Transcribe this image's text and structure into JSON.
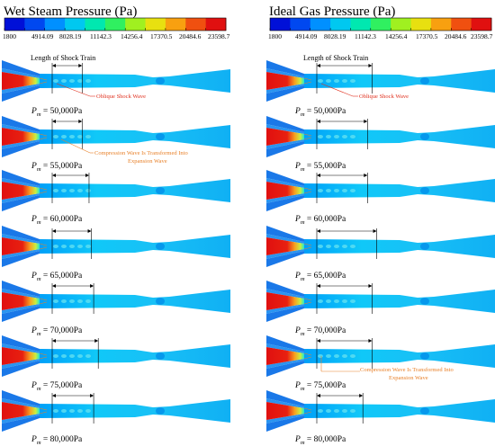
{
  "panels": [
    {
      "title": "Wet Steam Pressure (Pa)",
      "conditions": [
        "= 50,000Pa",
        "= 55,000Pa",
        "= 60,000Pa",
        "= 65,000Pa",
        "= 70,000Pa",
        "= 75,000Pa",
        "= 80,000Pa"
      ],
      "shock_train_fraction": [
        0.13,
        0.13,
        0.16,
        0.17,
        0.18,
        0.2,
        0.18
      ]
    },
    {
      "title": "Ideal Gas Pressure (Pa)",
      "conditions": [
        "= 50,000Pa",
        "= 55,000Pa",
        "= 60,000Pa",
        "= 65,000Pa",
        "= 70,000Pa",
        "= 75,000Pa",
        "= 80,000Pa"
      ],
      "shock_train_fraction": [
        0.24,
        0.22,
        0.22,
        0.26,
        0.24,
        0.24,
        0.2
      ]
    }
  ],
  "colorbar": {
    "ticks": [
      "1800",
      "4914.09",
      "8028.19",
      "11142.3",
      "14256.4",
      "17370.5",
      "20484.6",
      "23598.7"
    ],
    "colors": [
      "#0010d8",
      "#0048f0",
      "#0090ff",
      "#00c8f0",
      "#00e8b0",
      "#30f060",
      "#a0f020",
      "#e8e010",
      "#f8a010",
      "#f05010",
      "#e01010"
    ]
  },
  "condition_symbol": "P",
  "condition_subscript": "m",
  "annotations": {
    "length_label": "Length of Shock Train",
    "oblique": "Oblique Shock Wave",
    "compression_line1": "Compression Wave Is Transformed Into",
    "compression_line2": "Expansion Wave"
  }
}
